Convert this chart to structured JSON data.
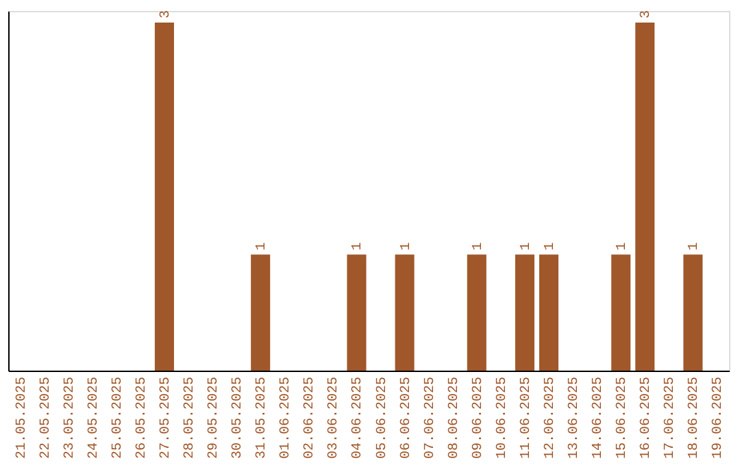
{
  "chart_data": {
    "type": "bar",
    "categories": [
      "21.05.2025",
      "22.05.2025",
      "23.05.2025",
      "24.05.2025",
      "25.05.2025",
      "26.05.2025",
      "27.05.2025",
      "28.05.2025",
      "29.05.2025",
      "30.05.2025",
      "31.05.2025",
      "01.06.2025",
      "02.06.2025",
      "03.06.2025",
      "04.06.2025",
      "05.06.2025",
      "06.06.2025",
      "07.06.2025",
      "08.06.2025",
      "09.06.2025",
      "10.06.2025",
      "11.06.2025",
      "12.06.2025",
      "13.06.2025",
      "14.06.2025",
      "15.06.2025",
      "16.06.2025",
      "17.06.2025",
      "18.06.2025",
      "19.06.2025"
    ],
    "values": [
      0,
      0,
      0,
      0,
      0,
      0,
      3,
      0,
      0,
      0,
      1,
      0,
      0,
      0,
      1,
      0,
      1,
      0,
      0,
      1,
      0,
      1,
      1,
      0,
      0,
      1,
      3,
      0,
      1,
      0
    ],
    "value_labels": [
      null,
      null,
      null,
      null,
      null,
      null,
      "3",
      null,
      null,
      null,
      "1",
      null,
      null,
      null,
      "1",
      null,
      "1",
      null,
      null,
      "1",
      null,
      "1",
      "1",
      null,
      null,
      "1",
      "3",
      null,
      "1",
      null
    ],
    "color": "#a0572a",
    "ylim": [
      0,
      3.1
    ],
    "tick_labels": "x",
    "grid": false
  }
}
